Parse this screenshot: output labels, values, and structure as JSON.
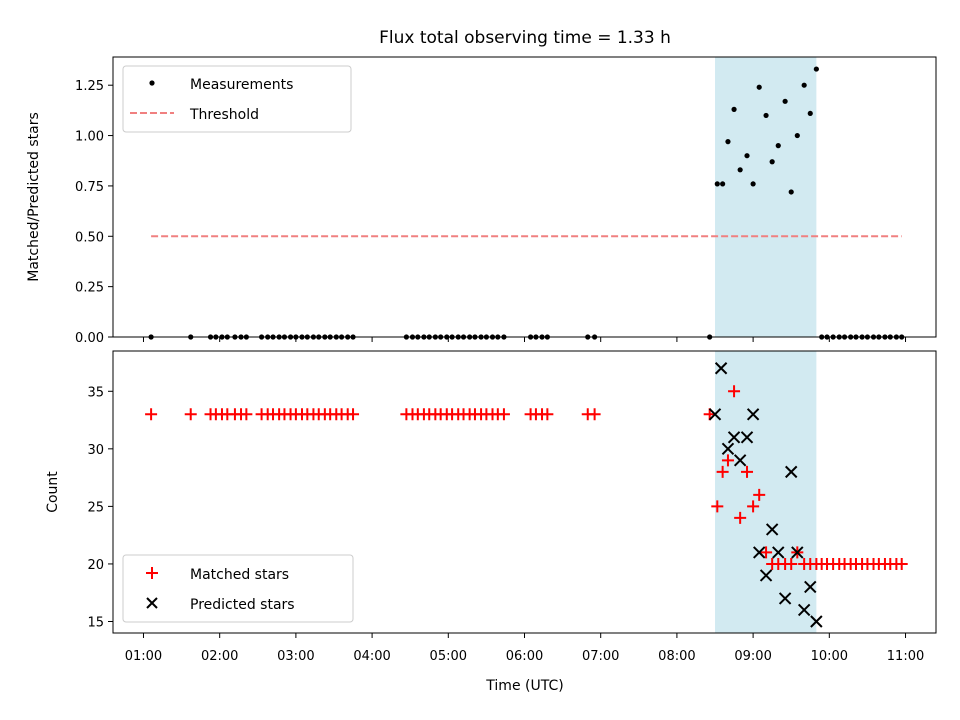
{
  "chart_data": [
    {
      "type": "scatter",
      "title": "Flux total observing time = 1.33 h",
      "xlabel": "",
      "ylabel": "Matched/Predicted stars",
      "xlim": [
        0.6,
        11.4
      ],
      "ylim": [
        0.0,
        1.39
      ],
      "yticks": [
        "0.00",
        "0.25",
        "0.50",
        "0.75",
        "1.00",
        "1.25"
      ],
      "grid": false,
      "legend": "top-left",
      "shaded_span": {
        "x0": 8.5,
        "x1": 9.83,
        "color": "#add8e6"
      },
      "series": [
        {
          "name": "Measurements",
          "kind": "dots",
          "color": "#000000",
          "x": [
            1.1,
            1.62,
            1.88,
            1.95,
            2.03,
            2.1,
            2.2,
            2.28,
            2.35,
            2.55,
            2.63,
            2.7,
            2.78,
            2.85,
            2.93,
            3.0,
            3.08,
            3.15,
            3.23,
            3.3,
            3.38,
            3.45,
            3.53,
            3.6,
            3.68,
            3.75,
            4.45,
            4.53,
            4.6,
            4.68,
            4.75,
            4.83,
            4.9,
            4.98,
            5.05,
            5.13,
            5.2,
            5.28,
            5.35,
            5.43,
            5.5,
            5.58,
            5.65,
            5.73,
            6.08,
            6.15,
            6.23,
            6.3,
            6.83,
            6.92,
            8.43,
            8.53,
            8.6,
            8.67,
            8.75,
            8.83,
            8.92,
            9.0,
            9.08,
            9.17,
            9.25,
            9.33,
            9.42,
            9.5,
            9.58,
            9.67,
            9.75,
            9.83,
            9.9,
            9.97,
            10.05,
            10.13,
            10.2,
            10.28,
            10.35,
            10.43,
            10.5,
            10.58,
            10.65,
            10.73,
            10.8,
            10.88,
            10.95
          ],
          "y": [
            0,
            0,
            0,
            0,
            0,
            0,
            0,
            0,
            0,
            0,
            0,
            0,
            0,
            0,
            0,
            0,
            0,
            0,
            0,
            0,
            0,
            0,
            0,
            0,
            0,
            0,
            0,
            0,
            0,
            0,
            0,
            0,
            0,
            0,
            0,
            0,
            0,
            0,
            0,
            0,
            0,
            0,
            0,
            0,
            0,
            0,
            0,
            0,
            0,
            0,
            0,
            0.76,
            0.76,
            0.97,
            1.13,
            0.83,
            0.9,
            0.76,
            1.24,
            1.1,
            0.87,
            0.95,
            1.17,
            0.72,
            1.0,
            1.25,
            1.11,
            1.33,
            0,
            0,
            0,
            0,
            0,
            0,
            0,
            0,
            0,
            0,
            0,
            0,
            0,
            0,
            0
          ]
        },
        {
          "name": "Threshold",
          "kind": "dashed-line",
          "color": "#f08080",
          "x": [
            1.1,
            10.95
          ],
          "y": [
            0.5,
            0.5
          ]
        }
      ]
    },
    {
      "type": "scatter",
      "title": "",
      "xlabel": "Time (UTC)",
      "ylabel": "Count",
      "xlim": [
        0.6,
        11.4
      ],
      "ylim": [
        14.0,
        38.5
      ],
      "yticks": [
        "15",
        "20",
        "25",
        "30",
        "35"
      ],
      "xticks": [
        "01:00",
        "02:00",
        "03:00",
        "04:00",
        "05:00",
        "06:00",
        "07:00",
        "08:00",
        "09:00",
        "10:00",
        "11:00"
      ],
      "grid": false,
      "legend": "bottom-left",
      "shaded_span": {
        "x0": 8.5,
        "x1": 9.83,
        "color": "#add8e6"
      },
      "series": [
        {
          "name": "Matched stars",
          "kind": "plus",
          "color": "#ff0000",
          "x": [
            1.1,
            1.62,
            1.88,
            1.95,
            2.03,
            2.1,
            2.2,
            2.28,
            2.35,
            2.55,
            2.63,
            2.7,
            2.78,
            2.85,
            2.93,
            3.0,
            3.08,
            3.15,
            3.23,
            3.3,
            3.38,
            3.45,
            3.53,
            3.6,
            3.68,
            3.75,
            4.45,
            4.53,
            4.6,
            4.68,
            4.75,
            4.83,
            4.9,
            4.98,
            5.05,
            5.13,
            5.2,
            5.28,
            5.35,
            5.43,
            5.5,
            5.58,
            5.65,
            5.73,
            6.08,
            6.15,
            6.23,
            6.3,
            6.83,
            6.92,
            8.43,
            8.53,
            8.6,
            8.67,
            8.75,
            8.83,
            8.92,
            9.0,
            9.08,
            9.17,
            9.25,
            9.33,
            9.42,
            9.5,
            9.58,
            9.67,
            9.75,
            9.83,
            9.9,
            9.97,
            10.05,
            10.13,
            10.2,
            10.28,
            10.35,
            10.43,
            10.5,
            10.58,
            10.65,
            10.73,
            10.8,
            10.88,
            10.95
          ],
          "y": [
            33,
            33,
            33,
            33,
            33,
            33,
            33,
            33,
            33,
            33,
            33,
            33,
            33,
            33,
            33,
            33,
            33,
            33,
            33,
            33,
            33,
            33,
            33,
            33,
            33,
            33,
            33,
            33,
            33,
            33,
            33,
            33,
            33,
            33,
            33,
            33,
            33,
            33,
            33,
            33,
            33,
            33,
            33,
            33,
            33,
            33,
            33,
            33,
            33,
            33,
            33,
            25,
            28,
            29,
            35,
            24,
            28,
            25,
            26,
            21,
            20,
            20,
            20,
            20,
            21,
            20,
            20,
            20,
            20,
            20,
            20,
            20,
            20,
            20,
            20,
            20,
            20,
            20,
            20,
            20,
            20,
            20,
            20
          ]
        },
        {
          "name": "Predicted stars",
          "kind": "x",
          "color": "#000000",
          "x": [
            8.5,
            8.58,
            8.67,
            8.75,
            8.83,
            8.92,
            9.0,
            9.08,
            9.17,
            9.25,
            9.33,
            9.42,
            9.5,
            9.58,
            9.67,
            9.75,
            9.83
          ],
          "y": [
            33,
            37,
            30,
            31,
            29,
            31,
            33,
            21,
            19,
            23,
            21,
            17,
            28,
            21,
            16,
            18,
            15
          ]
        }
      ]
    }
  ]
}
